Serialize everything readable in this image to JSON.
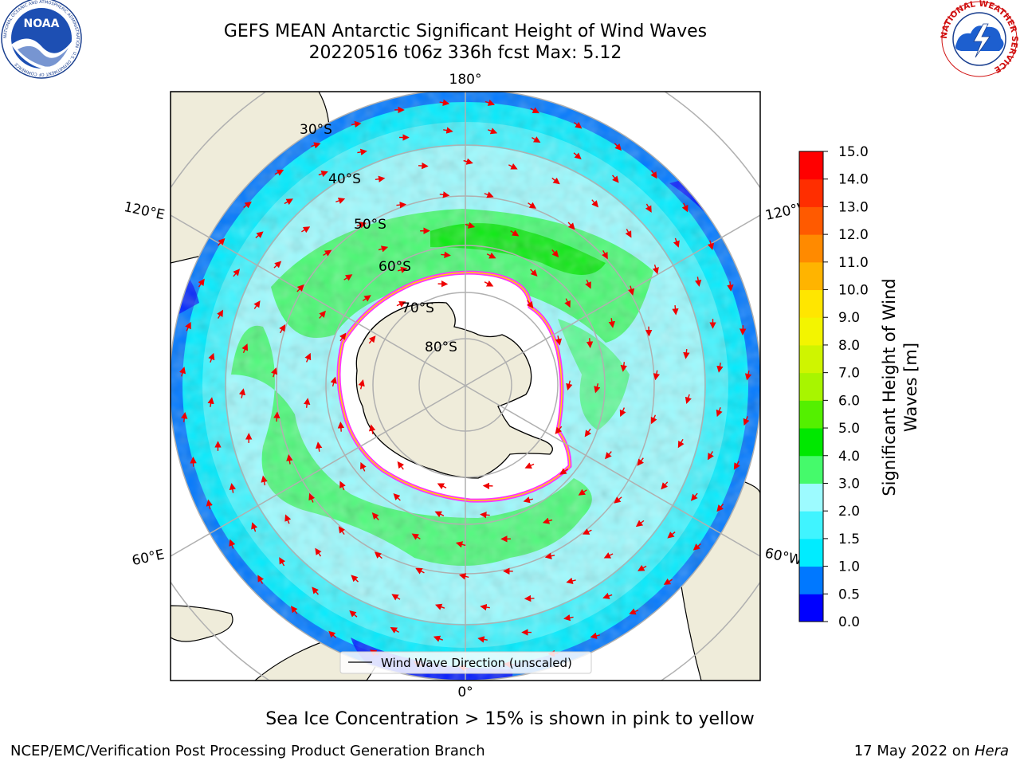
{
  "header": {
    "title_line1": "GEFS MEAN Antarctic Significant Height of Wind Waves",
    "title_line2": "20220516 t06z 336h fcst   Max: 5.12"
  },
  "logos": {
    "noaa": {
      "text": "NOAA",
      "ring_text": "NATIONAL OCEANIC AND ATMOSPHERIC ADMINISTRATION · U.S. DEPARTMENT OF COMMERCE"
    },
    "nws": {
      "ring_text": "NATIONAL WEATHER SERVICE"
    }
  },
  "map": {
    "projection": "south-polar-stereographic",
    "longitude_labels": {
      "top": "180°",
      "bottom": "0°",
      "upper_left": "120°E",
      "upper_right": "120°W",
      "lower_left": "60°E",
      "lower_right": "60°W"
    },
    "latitude_labels": [
      "30°S",
      "40°S",
      "50°S",
      "60°S",
      "70°S",
      "80°S"
    ],
    "legend_label": "Wind Wave Direction (unscaled)",
    "land_color": "#efecda",
    "ice_edge_colors": [
      "#ff33ff",
      "#ffd700"
    ]
  },
  "colorbar": {
    "label": "Significant Height of Wind Waves [m]",
    "label_line1": "Significant Height of Wind",
    "label_line2": "Waves [m]",
    "ticks": [
      "0.0",
      "0.5",
      "1.0",
      "1.5",
      "2.0",
      "3.0",
      "4.0",
      "5.0",
      "6.0",
      "7.0",
      "8.0",
      "9.0",
      "10.0",
      "11.0",
      "12.0",
      "13.0",
      "14.0",
      "15.0"
    ],
    "colors": [
      "#0000ff",
      "#0078ff",
      "#00ecff",
      "#40f4ff",
      "#9dfbff",
      "#45fa6b",
      "#00e800",
      "#54f000",
      "#a8f500",
      "#cff500",
      "#f3f500",
      "#ffe600",
      "#ffb400",
      "#ff8a00",
      "#ff5a00",
      "#ff2e00",
      "#ff0000"
    ]
  },
  "footer": {
    "note": "Sea Ice Concentration > 15% is shown in pink to yellow",
    "credit_left": "NCEP/EMC/Verification Post Processing Product Generation Branch",
    "credit_date": "17 May 2022 on ",
    "credit_machine": "Hera"
  }
}
